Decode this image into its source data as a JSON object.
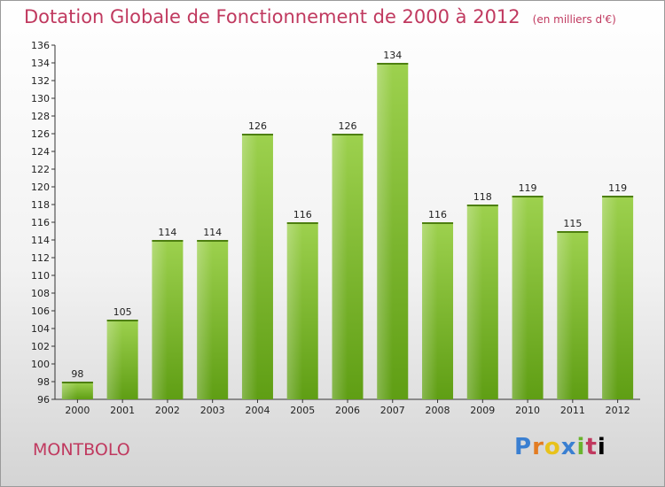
{
  "header": {
    "title": "Dotation Globale de Fonctionnement de 2000 à 2012",
    "unit": "(en milliers d'€)"
  },
  "commune": "MONTBOLO",
  "logo": {
    "letters": [
      "P",
      "r",
      "o",
      "x",
      "i",
      "t",
      "i"
    ]
  },
  "colors": {
    "bar_light": "#9dd14e",
    "bar_dark": "#5f9e14",
    "title": "#c0395f"
  },
  "chart_data": {
    "type": "bar",
    "title": "Dotation Globale de Fonctionnement de 2000 à 2012",
    "categories": [
      "2000",
      "2001",
      "2002",
      "2003",
      "2004",
      "2005",
      "2006",
      "2007",
      "2008",
      "2009",
      "2010",
      "2011",
      "2012"
    ],
    "values": [
      98,
      105,
      114,
      114,
      126,
      116,
      126,
      134,
      116,
      118,
      119,
      115,
      119
    ],
    "ylim": [
      96,
      136
    ],
    "yticks": [
      96,
      98,
      100,
      102,
      104,
      106,
      108,
      110,
      112,
      114,
      116,
      118,
      120,
      122,
      124,
      126,
      128,
      130,
      132,
      134,
      136
    ],
    "grid": false,
    "legend": "none"
  }
}
